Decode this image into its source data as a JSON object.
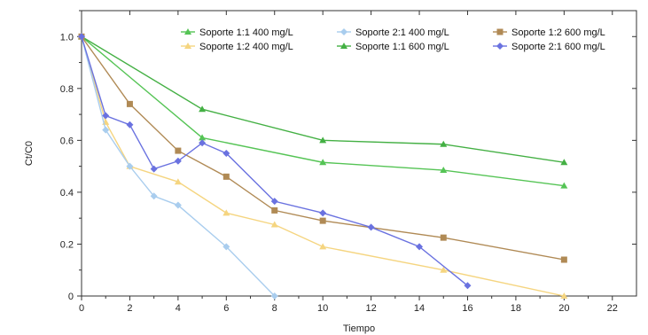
{
  "chart_data": {
    "type": "line",
    "xlabel": "Tiempo",
    "ylabel": "Ct/C0",
    "xlim": [
      0,
      23
    ],
    "ylim": [
      0,
      1.1
    ],
    "xticks": [
      0,
      2,
      4,
      6,
      8,
      10,
      12,
      14,
      16,
      18,
      20,
      22
    ],
    "yticks": [
      0,
      0.2,
      0.4,
      0.6,
      0.8,
      1.0
    ],
    "ytick_labels": [
      "0",
      "0.2",
      "0.4",
      "0.6",
      "0.8",
      "1.0"
    ],
    "grid": false,
    "legend_position": "top-right",
    "series": [
      {
        "name": "Soporte 1:1  400 mg/L",
        "color": "#55c455",
        "marker": "triangle",
        "x": [
          0,
          5,
          10,
          15,
          20
        ],
        "y": [
          1.0,
          0.61,
          0.515,
          0.485,
          0.425
        ]
      },
      {
        "name": "Soporte 1:2  400 mg/L",
        "color": "#f5d580",
        "marker": "triangle",
        "x": [
          0,
          1,
          2,
          4,
          6,
          8,
          10,
          15,
          20
        ],
        "y": [
          1.0,
          0.67,
          0.5,
          0.44,
          0.32,
          0.275,
          0.19,
          0.1,
          0.0
        ]
      },
      {
        "name": "Soporte 2:1  400 mg/L",
        "color": "#a9cdee",
        "marker": "diamond",
        "x": [
          0,
          1,
          2,
          3,
          4,
          6,
          8
        ],
        "y": [
          1.0,
          0.64,
          0.5,
          0.385,
          0.35,
          0.19,
          0.0
        ]
      },
      {
        "name": "Soporte 1:1  600 mg/L",
        "color": "#44b044",
        "marker": "triangle",
        "x": [
          0,
          5,
          10,
          15,
          20
        ],
        "y": [
          1.0,
          0.72,
          0.6,
          0.585,
          0.515
        ]
      },
      {
        "name": "Soporte 1:2  600 mg/L",
        "color": "#b08a55",
        "marker": "square",
        "x": [
          0,
          2,
          4,
          6,
          8,
          10,
          15,
          20
        ],
        "y": [
          1.0,
          0.74,
          0.56,
          0.46,
          0.33,
          0.29,
          0.225,
          0.14
        ]
      },
      {
        "name": "Soporte 2:1  600 mg/L",
        "color": "#6a72e0",
        "marker": "diamond",
        "x": [
          0,
          1,
          2,
          3,
          4,
          5,
          6,
          8,
          10,
          12,
          14,
          16
        ],
        "y": [
          1.0,
          0.695,
          0.66,
          0.49,
          0.52,
          0.59,
          0.55,
          0.365,
          0.32,
          0.265,
          0.19,
          0.04
        ]
      }
    ]
  }
}
